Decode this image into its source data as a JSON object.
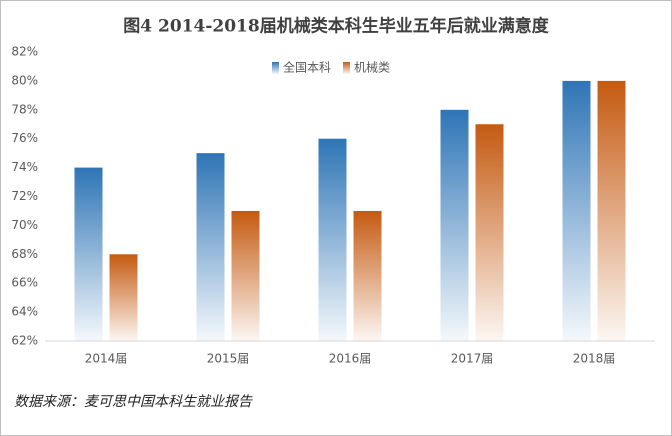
{
  "chart_data": {
    "type": "bar",
    "title": "图4 2014-2018届机械类本科生毕业五年后就业满意度",
    "categories": [
      "2014届",
      "2015届",
      "2016届",
      "2017届",
      "2018届"
    ],
    "series": [
      {
        "name": "全国本科",
        "color": "#2e75b6",
        "values": [
          74,
          75,
          76,
          78,
          80
        ]
      },
      {
        "name": "机械类",
        "color": "#c55a11",
        "values": [
          68,
          71,
          71,
          77,
          80
        ]
      }
    ],
    "ylim": [
      62,
      82
    ],
    "yticks": [
      {
        "value": 62,
        "label": "62%"
      },
      {
        "value": 64,
        "label": "64%"
      },
      {
        "value": 66,
        "label": "66%"
      },
      {
        "value": 68,
        "label": "68%"
      },
      {
        "value": 70,
        "label": "70%"
      },
      {
        "value": 72,
        "label": "72%"
      },
      {
        "value": 74,
        "label": "74%"
      },
      {
        "value": 76,
        "label": "76%"
      },
      {
        "value": 78,
        "label": "78%"
      },
      {
        "value": 80,
        "label": "80%"
      },
      {
        "value": 82,
        "label": "82%"
      }
    ],
    "legend": "top",
    "source": "数据来源：麦可思中国本科生就业报告"
  }
}
